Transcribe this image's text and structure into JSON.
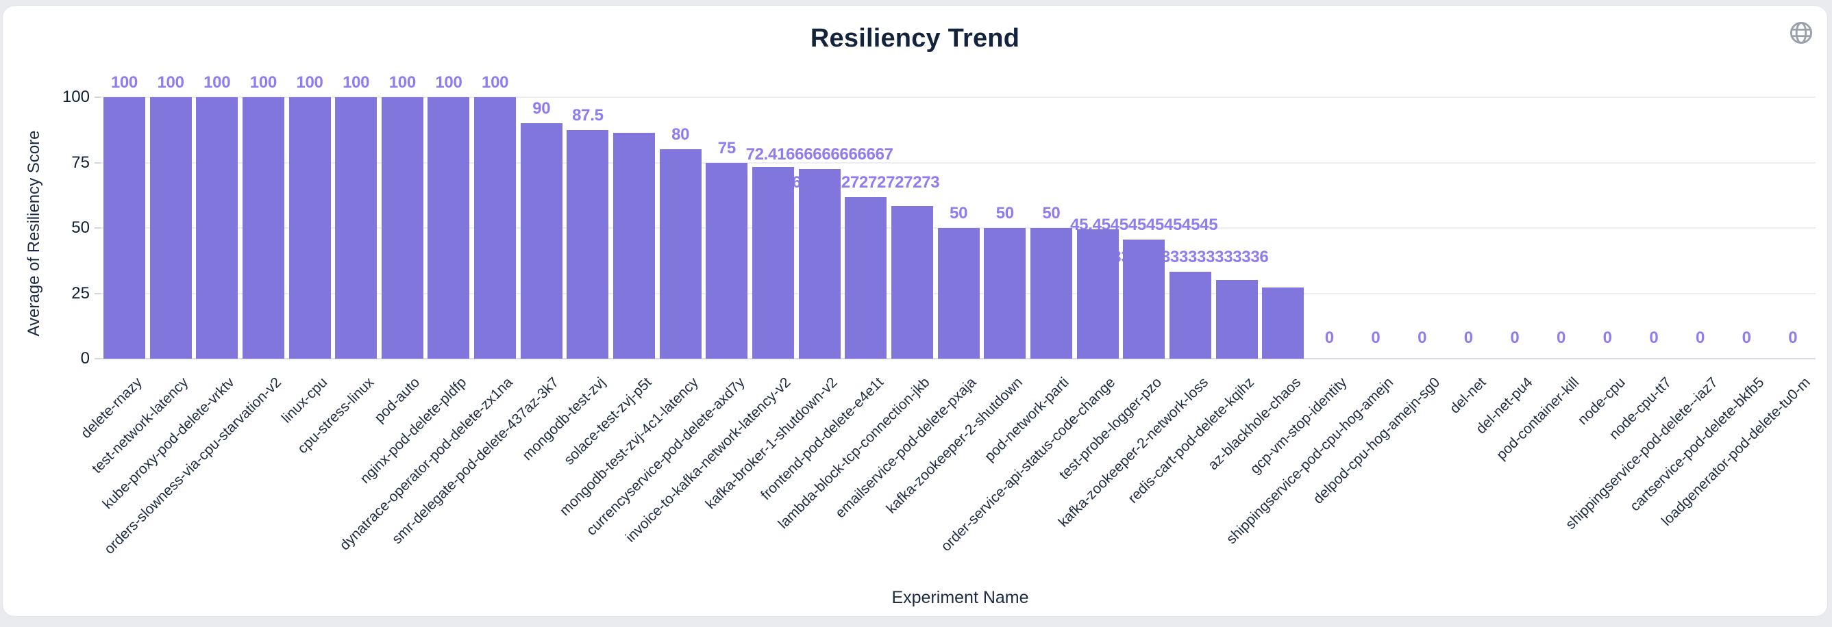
{
  "header": {
    "title": "Resiliency Trend",
    "icons": {
      "globe": "globe-icon"
    }
  },
  "colors": {
    "page_background": "#e9ebef",
    "card_background": "#ffffff",
    "bar": "#8176db",
    "bar_value_label": "#8d7df0",
    "axis_text": "#1b2a41",
    "tick_text": "#0e1f38",
    "gridline": "#ededf2",
    "title_text": "#14233c",
    "globe_icon": "#99a0ac"
  },
  "chart_data": {
    "type": "bar",
    "title": "Resiliency Trend",
    "xlabel": "Experiment Name",
    "ylabel": "Average of Resiliency Score",
    "ylim": [
      0,
      100
    ],
    "yticks": [
      0,
      25,
      50,
      75,
      100
    ],
    "grid": true,
    "legend": false,
    "categories": [
      "delete-rnazy",
      "test-network-latency",
      "kube-proxy-pod-delete-vrktv",
      "orders-slowness-via-cpu-starvation-v2",
      "linux-cpu",
      "cpu-stress-linux",
      "pod-auto",
      "nginx-pod-delete-pldfp",
      "dynatrace-operator-pod-delete-zx1na",
      "smr-delegate-pod-delete-437az-3k7",
      "mongodb-test-zvj",
      "solace-test-zvj-p5t",
      "mongodb-test-zvj-4c1-latency",
      "currencyservice-pod-delete-axd7y",
      "invoice-to-kafka-network-latency-v2",
      "kafka-broker-1-shutdown-v2",
      "frontend-pod-delete-e4e1t",
      "lambda-block-tcp-connection-jkb",
      "emailservice-pod-delete-pxaja",
      "kafka-zookeeper-2-shutdown",
      "pod-network-parti",
      "order-service-api-status-code-change",
      "test-probe-logger-pzo",
      "kafka-zookeeper-2-network-loss",
      "redis-cart-pod-delete-kqihz",
      "az-blackhole-chaos",
      "gcp-vm-stop-identity",
      "shippingservice-pod-cpu-hog-amejn",
      "delpod-cpu-hog-amejn-sg0",
      "del-net",
      "del-net-pu4",
      "pod-container-kill",
      "node-cpu",
      "node-cpu-tt7",
      "shippingservice-pod-delete--iaz7",
      "cartservice-pod-delete-bkfb5",
      "loadgenerator-pod-delete-tu0-m"
    ],
    "values": [
      100,
      100,
      100,
      100,
      100,
      100,
      100,
      100,
      100,
      90,
      87.5,
      86.4,
      80,
      75,
      73.2,
      72.41666666666667,
      61.72727272727273,
      58.3,
      50,
      50,
      50,
      49.6,
      45.45454545454545,
      33.333333333333336,
      30,
      27.3,
      0,
      0,
      0,
      0,
      0,
      0,
      0,
      0,
      0,
      0,
      0
    ],
    "bar_labels": [
      "100",
      "100",
      "100",
      "100",
      "100",
      "100",
      "100",
      "100",
      "100",
      "90",
      "87.5",
      "",
      "80",
      "75",
      "",
      "72.41666666666667",
      "61.72727272727273",
      "",
      "50",
      "50",
      "50",
      "",
      "45.45454545454545",
      "33.333333333333336",
      "",
      "",
      "0",
      "0",
      "0",
      "0",
      "0",
      "0",
      "0",
      "0",
      "0",
      "0",
      "0"
    ]
  }
}
